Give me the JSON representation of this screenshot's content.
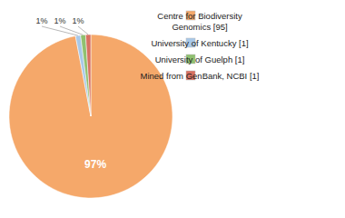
{
  "chart_data": {
    "type": "pie",
    "categories": [
      "Centre for Biodiversity\nGenomics [95]",
      "University of Kentucky [1]",
      "University of Guelph [1]",
      "Mined from GenBank, NCBI [1]"
    ],
    "values": [
      97,
      1,
      1,
      1
    ],
    "value_labels": [
      "97%",
      "1%",
      "1%",
      "1%"
    ],
    "colors": [
      "#F5A86A",
      "#A8C8E8",
      "#90C070",
      "#D87060"
    ],
    "data_labels": true,
    "legend": "upper right"
  }
}
